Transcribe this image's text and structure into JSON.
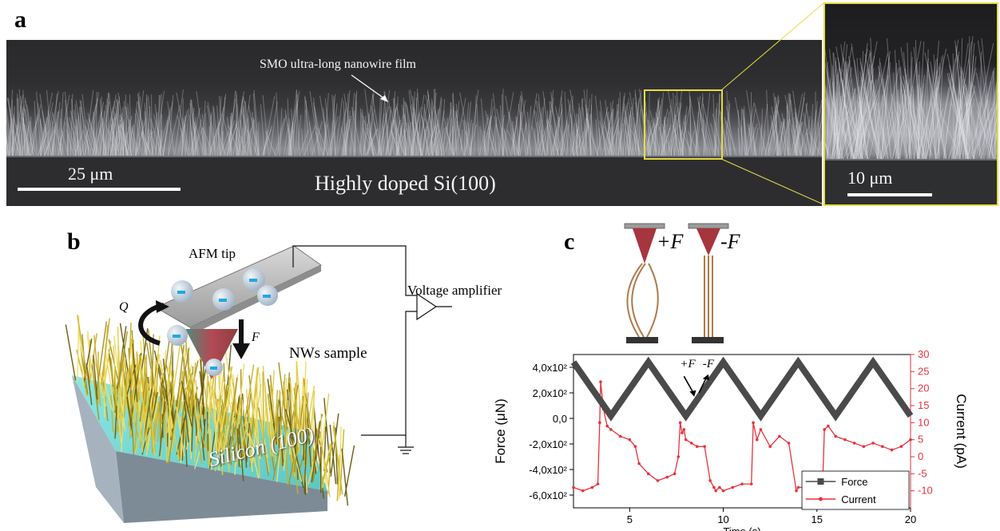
{
  "panel_a": {
    "label": "a",
    "film_annotation": "SMO ultra-long nanowire film",
    "scalebar_main": "25 μm",
    "substrate_label": "Highly doped Si(100)",
    "scalebar_inset": "10 μm",
    "inset_border_color": "#e6dc46"
  },
  "panel_b": {
    "label": "b",
    "afm_tip": "AFM tip",
    "voltage_amplifier": "Voltage amplifier",
    "q_label": "Q",
    "f_label": "F",
    "nws_sample": "NWs sample",
    "substrate": "Silicon (100)"
  },
  "panel_c": {
    "label": "c",
    "plus_f": "+F",
    "minus_f": "-F",
    "chart_data": {
      "type": "line",
      "xlabel": "Time (s)",
      "ylabel": "Force (μN)",
      "y2label": "Current (pA)",
      "xlim": [
        2,
        20
      ],
      "ylim": [
        -700,
        500
      ],
      "y2lim": [
        -15,
        30
      ],
      "x_ticks": [
        "5",
        "10",
        "15",
        "20"
      ],
      "y_ticks": [
        "4,0x10²",
        "2,0x10²",
        "0,0",
        "-2,0x10²",
        "-4,0x10²",
        "-6,0x10²"
      ],
      "y2_ticks": [
        "30",
        "25",
        "20",
        "15",
        "10",
        "5",
        "0",
        "-5",
        "-10"
      ],
      "annotations": [
        "+F",
        "-F"
      ],
      "legend": [
        "Force",
        "Current"
      ],
      "legend_position": "bottom-right",
      "series": [
        {
          "name": "Force",
          "color": "#4a4a4a",
          "x": [
            2,
            4,
            6,
            8,
            10,
            12,
            14,
            16,
            18,
            20
          ],
          "y": [
            440,
            20,
            440,
            20,
            440,
            20,
            440,
            20,
            440,
            20
          ]
        },
        {
          "name": "Current",
          "color": "#e8323c",
          "x": [
            2.0,
            2.5,
            3.0,
            3.3,
            3.4,
            3.45,
            3.6,
            3.8,
            4.0,
            4.5,
            5.0,
            5.3,
            5.5,
            6.0,
            6.5,
            7.0,
            7.4,
            7.6,
            7.7,
            7.8,
            7.9,
            8.0,
            8.3,
            8.6,
            9.0,
            9.3,
            9.5,
            9.6,
            9.8,
            10.0,
            10.5,
            11.0,
            11.5,
            11.6,
            11.8,
            12.0,
            12.5,
            13.0,
            13.5,
            13.9,
            14.0,
            14.5,
            15.0,
            15.3,
            15.4,
            15.6,
            16.0,
            16.5,
            17.0,
            17.5,
            18.0,
            18.5,
            19.0,
            19.5,
            20.0
          ],
          "y": [
            -9,
            -10,
            -9,
            -8,
            10,
            22,
            14,
            9,
            8,
            6,
            5,
            3,
            -2,
            -5,
            -7,
            -6,
            -5,
            0,
            10,
            7,
            8,
            5,
            4,
            3,
            3,
            -7,
            -9,
            -10,
            -9,
            -10,
            -9,
            -8,
            -8,
            10,
            5,
            8,
            3,
            6,
            4,
            -10,
            -9,
            -9,
            -9,
            -9,
            8,
            9,
            6,
            5,
            4,
            3,
            4,
            3,
            2,
            3,
            5
          ]
        }
      ]
    }
  }
}
